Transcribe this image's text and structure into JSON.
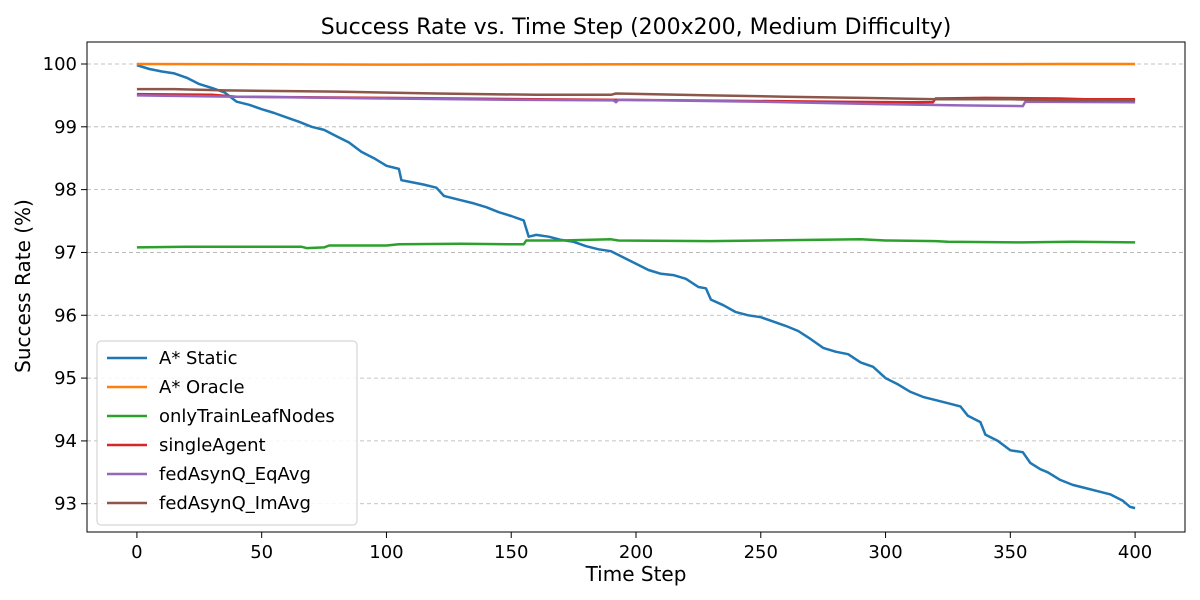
{
  "chart_data": {
    "type": "line",
    "title": "Success Rate vs. Time Step (200x200, Medium Difficulty)",
    "xlabel": "Time Step",
    "ylabel": "Success Rate (%)",
    "xlim": [
      -20,
      420
    ],
    "ylim": [
      92.55,
      100.35
    ],
    "xticks": [
      0,
      50,
      100,
      150,
      200,
      250,
      300,
      350,
      400
    ],
    "yticks": [
      93,
      94,
      95,
      96,
      97,
      98,
      99,
      100
    ],
    "grid": "y-dashed",
    "legend_position": "lower-left",
    "series": [
      {
        "name": "A* Static",
        "color": "#1f77b4",
        "points": [
          [
            0,
            99.98
          ],
          [
            5,
            99.92
          ],
          [
            10,
            99.88
          ],
          [
            15,
            99.85
          ],
          [
            20,
            99.78
          ],
          [
            25,
            99.68
          ],
          [
            30,
            99.62
          ],
          [
            35,
            99.55
          ],
          [
            40,
            99.4
          ],
          [
            45,
            99.35
          ],
          [
            50,
            99.28
          ],
          [
            55,
            99.22
          ],
          [
            60,
            99.15
          ],
          [
            65,
            99.08
          ],
          [
            70,
            99.0
          ],
          [
            75,
            98.95
          ],
          [
            80,
            98.85
          ],
          [
            85,
            98.75
          ],
          [
            90,
            98.6
          ],
          [
            95,
            98.5
          ],
          [
            100,
            98.38
          ],
          [
            105,
            98.33
          ],
          [
            106,
            98.15
          ],
          [
            110,
            98.12
          ],
          [
            115,
            98.08
          ],
          [
            120,
            98.03
          ],
          [
            123,
            97.9
          ],
          [
            130,
            97.83
          ],
          [
            135,
            97.78
          ],
          [
            140,
            97.72
          ],
          [
            145,
            97.64
          ],
          [
            150,
            97.58
          ],
          [
            155,
            97.51
          ],
          [
            157,
            97.25
          ],
          [
            160,
            97.28
          ],
          [
            165,
            97.25
          ],
          [
            170,
            97.2
          ],
          [
            175,
            97.17
          ],
          [
            180,
            97.1
          ],
          [
            185,
            97.05
          ],
          [
            190,
            97.02
          ],
          [
            195,
            96.92
          ],
          [
            200,
            96.82
          ],
          [
            205,
            96.72
          ],
          [
            210,
            96.66
          ],
          [
            215,
            96.64
          ],
          [
            220,
            96.58
          ],
          [
            225,
            96.45
          ],
          [
            228,
            96.43
          ],
          [
            230,
            96.25
          ],
          [
            235,
            96.16
          ],
          [
            240,
            96.05
          ],
          [
            245,
            96.0
          ],
          [
            250,
            95.97
          ],
          [
            255,
            95.9
          ],
          [
            260,
            95.83
          ],
          [
            265,
            95.75
          ],
          [
            270,
            95.62
          ],
          [
            275,
            95.48
          ],
          [
            280,
            95.42
          ],
          [
            285,
            95.38
          ],
          [
            290,
            95.25
          ],
          [
            295,
            95.18
          ],
          [
            300,
            95.0
          ],
          [
            305,
            94.9
          ],
          [
            310,
            94.78
          ],
          [
            315,
            94.7
          ],
          [
            320,
            94.65
          ],
          [
            325,
            94.6
          ],
          [
            330,
            94.55
          ],
          [
            333,
            94.4
          ],
          [
            338,
            94.3
          ],
          [
            340,
            94.1
          ],
          [
            345,
            94.0
          ],
          [
            350,
            93.85
          ],
          [
            355,
            93.82
          ],
          [
            358,
            93.65
          ],
          [
            362,
            93.55
          ],
          [
            365,
            93.5
          ],
          [
            370,
            93.38
          ],
          [
            375,
            93.3
          ],
          [
            380,
            93.25
          ],
          [
            385,
            93.2
          ],
          [
            390,
            93.15
          ],
          [
            395,
            93.05
          ],
          [
            398,
            92.95
          ],
          [
            400,
            92.93
          ]
        ]
      },
      {
        "name": "A* Oracle",
        "color": "#ff7f0e",
        "points": [
          [
            0,
            100.0
          ],
          [
            100,
            99.99
          ],
          [
            200,
            99.995
          ],
          [
            300,
            99.995
          ],
          [
            370,
            100.0
          ],
          [
            400,
            100.0
          ]
        ]
      },
      {
        "name": "onlyTrainLeafNodes",
        "color": "#2ca02c",
        "points": [
          [
            0,
            97.08
          ],
          [
            20,
            97.09
          ],
          [
            30,
            97.09
          ],
          [
            60,
            97.09
          ],
          [
            66,
            97.09
          ],
          [
            68,
            97.07
          ],
          [
            75,
            97.08
          ],
          [
            77,
            97.11
          ],
          [
            100,
            97.11
          ],
          [
            105,
            97.13
          ],
          [
            130,
            97.14
          ],
          [
            150,
            97.13
          ],
          [
            155,
            97.13
          ],
          [
            156,
            97.19
          ],
          [
            170,
            97.19
          ],
          [
            180,
            97.2
          ],
          [
            190,
            97.21
          ],
          [
            193,
            97.19
          ],
          [
            230,
            97.18
          ],
          [
            270,
            97.2
          ],
          [
            290,
            97.21
          ],
          [
            300,
            97.19
          ],
          [
            320,
            97.18
          ],
          [
            325,
            97.17
          ],
          [
            355,
            97.16
          ],
          [
            375,
            97.17
          ],
          [
            400,
            97.16
          ]
        ]
      },
      {
        "name": "singleAgent",
        "color": "#d62728",
        "points": [
          [
            0,
            99.52
          ],
          [
            30,
            99.51
          ],
          [
            40,
            99.48
          ],
          [
            100,
            99.46
          ],
          [
            160,
            99.44
          ],
          [
            220,
            99.42
          ],
          [
            280,
            99.4
          ],
          [
            310,
            99.39
          ],
          [
            319,
            99.39
          ],
          [
            320,
            99.45
          ],
          [
            340,
            99.46
          ],
          [
            370,
            99.45
          ],
          [
            380,
            99.44
          ],
          [
            400,
            99.44
          ]
        ]
      },
      {
        "name": "fedAsynQ_EqAvg",
        "color": "#9467bd",
        "points": [
          [
            0,
            99.5
          ],
          [
            40,
            99.48
          ],
          [
            100,
            99.45
          ],
          [
            150,
            99.43
          ],
          [
            191,
            99.42
          ],
          [
            192,
            99.39
          ],
          [
            193,
            99.43
          ],
          [
            250,
            99.4
          ],
          [
            300,
            99.36
          ],
          [
            330,
            99.34
          ],
          [
            355,
            99.33
          ],
          [
            356,
            99.4
          ],
          [
            400,
            99.39
          ]
        ]
      },
      {
        "name": "fedAsynQ_ImAvg",
        "color": "#8c564b",
        "points": [
          [
            0,
            99.6
          ],
          [
            15,
            99.6
          ],
          [
            35,
            99.58
          ],
          [
            80,
            99.56
          ],
          [
            120,
            99.53
          ],
          [
            160,
            99.51
          ],
          [
            190,
            99.51
          ],
          [
            192,
            99.53
          ],
          [
            230,
            99.5
          ],
          [
            260,
            99.48
          ],
          [
            290,
            99.46
          ],
          [
            320,
            99.44
          ],
          [
            350,
            99.44
          ],
          [
            370,
            99.42
          ],
          [
            400,
            99.42
          ]
        ]
      }
    ]
  }
}
